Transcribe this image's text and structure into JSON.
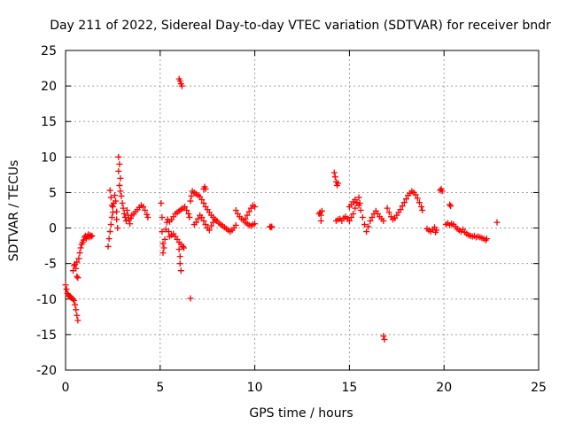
{
  "chart_data": {
    "type": "scatter",
    "title": "Day 211 of 2022, Sidereal Day-to-day VTEC variation (SDTVAR) for receiver bndr",
    "xlabel": "GPS time / hours",
    "ylabel": "SDTVAR / TECUs",
    "xlim": [
      0,
      25
    ],
    "ylim": [
      -20,
      25
    ],
    "xticks": [
      0,
      5,
      10,
      15,
      20,
      25
    ],
    "yticks": [
      -20,
      -15,
      -10,
      -5,
      0,
      5,
      10,
      15,
      20,
      25
    ],
    "grid": true,
    "marker": "+",
    "series": [
      {
        "name": "SDTVAR",
        "color": "#ff0000",
        "points": [
          [
            0.0,
            -8.0
          ],
          [
            0.05,
            -8.6
          ],
          [
            0.1,
            -9.2
          ],
          [
            0.15,
            -9.4
          ],
          [
            0.2,
            -9.6
          ],
          [
            0.25,
            -9.7
          ],
          [
            0.3,
            -9.8
          ],
          [
            0.35,
            -9.9
          ],
          [
            0.4,
            -10.0
          ],
          [
            0.45,
            -10.2
          ],
          [
            0.5,
            -10.8
          ],
          [
            0.55,
            -11.5
          ],
          [
            0.6,
            -12.3
          ],
          [
            0.65,
            -13.0
          ],
          [
            0.4,
            -6.0
          ],
          [
            0.45,
            -5.3
          ],
          [
            0.5,
            -5.1
          ],
          [
            0.55,
            -5.7
          ],
          [
            0.6,
            -6.8
          ],
          [
            0.65,
            -7.0
          ],
          [
            0.6,
            -4.8
          ],
          [
            0.7,
            -4.3
          ],
          [
            0.75,
            -3.5
          ],
          [
            0.8,
            -2.8
          ],
          [
            0.85,
            -2.3
          ],
          [
            0.9,
            -2.0
          ],
          [
            0.95,
            -1.7
          ],
          [
            1.0,
            -1.3
          ],
          [
            1.05,
            -1.1
          ],
          [
            1.1,
            -1.5
          ],
          [
            1.15,
            -1.2
          ],
          [
            1.2,
            -0.9
          ],
          [
            1.25,
            -1.3
          ],
          [
            1.3,
            -1.0
          ],
          [
            1.35,
            -1.2
          ],
          [
            1.4,
            -1.1
          ],
          [
            2.25,
            -2.6
          ],
          [
            2.3,
            -1.5
          ],
          [
            2.35,
            -0.5
          ],
          [
            2.4,
            0.5
          ],
          [
            2.45,
            1.5
          ],
          [
            2.5,
            3.0
          ],
          [
            2.35,
            5.3
          ],
          [
            2.4,
            4.3
          ],
          [
            2.45,
            3.2
          ],
          [
            2.5,
            2.2
          ],
          [
            2.55,
            3.5
          ],
          [
            2.6,
            4.6
          ],
          [
            2.65,
            3.8
          ],
          [
            2.7,
            2.3
          ],
          [
            2.7,
            1.2
          ],
          [
            2.75,
            0.0
          ],
          [
            2.8,
            10.0
          ],
          [
            2.85,
            9.0
          ],
          [
            2.8,
            8.0
          ],
          [
            2.9,
            7.0
          ],
          [
            2.85,
            6.0
          ],
          [
            2.9,
            5.2
          ],
          [
            2.95,
            4.5
          ],
          [
            3.0,
            3.5
          ],
          [
            3.05,
            2.8
          ],
          [
            3.1,
            2.0
          ],
          [
            3.15,
            1.5
          ],
          [
            3.2,
            1.0
          ],
          [
            3.25,
            2.5
          ],
          [
            3.3,
            1.8
          ],
          [
            3.35,
            1.2
          ],
          [
            3.4,
            0.6
          ],
          [
            3.45,
            1.4
          ],
          [
            3.5,
            1.8
          ],
          [
            3.6,
            2.0
          ],
          [
            3.7,
            2.3
          ],
          [
            3.8,
            2.6
          ],
          [
            3.9,
            2.9
          ],
          [
            4.0,
            3.2
          ],
          [
            4.1,
            3.0
          ],
          [
            4.2,
            2.5
          ],
          [
            4.3,
            1.9
          ],
          [
            4.35,
            1.5
          ],
          [
            5.05,
            3.5
          ],
          [
            5.1,
            1.5
          ],
          [
            5.1,
            -0.5
          ],
          [
            5.15,
            -2.2
          ],
          [
            5.15,
            -3.5
          ],
          [
            5.2,
            -2.8
          ],
          [
            5.25,
            -1.6
          ],
          [
            5.3,
            -0.2
          ],
          [
            5.35,
            0.8
          ],
          [
            5.4,
            1.2
          ],
          [
            5.45,
            -0.5
          ],
          [
            5.5,
            -1.2
          ],
          [
            5.6,
            -1.0
          ],
          [
            5.7,
            -0.8
          ],
          [
            5.8,
            -1.2
          ],
          [
            5.9,
            -1.6
          ],
          [
            6.0,
            -2.0
          ],
          [
            6.1,
            -2.3
          ],
          [
            6.2,
            -2.6
          ],
          [
            6.25,
            -2.8
          ],
          [
            5.5,
            0.9
          ],
          [
            5.6,
            1.2
          ],
          [
            5.7,
            1.6
          ],
          [
            5.8,
            2.0
          ],
          [
            5.9,
            2.2
          ],
          [
            6.0,
            2.4
          ],
          [
            6.1,
            2.6
          ],
          [
            6.2,
            2.8
          ],
          [
            6.3,
            3.0
          ],
          [
            6.4,
            2.5
          ],
          [
            6.5,
            2.0
          ],
          [
            6.55,
            1.5
          ],
          [
            6.0,
            -3.0
          ],
          [
            6.05,
            -4.0
          ],
          [
            6.05,
            -5.0
          ],
          [
            6.1,
            -6.0
          ],
          [
            6.0,
            21.0
          ],
          [
            6.05,
            20.7
          ],
          [
            6.1,
            20.3
          ],
          [
            6.15,
            20.0
          ],
          [
            6.6,
            -9.9
          ],
          [
            6.6,
            3.8
          ],
          [
            6.65,
            4.5
          ],
          [
            6.7,
            5.2
          ],
          [
            6.8,
            5.0
          ],
          [
            6.9,
            4.8
          ],
          [
            7.0,
            4.6
          ],
          [
            7.1,
            4.4
          ],
          [
            7.2,
            4.0
          ],
          [
            7.3,
            3.5
          ],
          [
            7.4,
            3.0
          ],
          [
            7.5,
            2.6
          ],
          [
            7.6,
            2.2
          ],
          [
            7.7,
            1.8
          ],
          [
            7.8,
            1.5
          ],
          [
            7.9,
            1.2
          ],
          [
            8.0,
            1.0
          ],
          [
            8.1,
            0.7
          ],
          [
            8.2,
            0.5
          ],
          [
            8.3,
            0.3
          ],
          [
            8.4,
            0.1
          ],
          [
            8.5,
            -0.1
          ],
          [
            8.6,
            -0.3
          ],
          [
            8.7,
            -0.5
          ],
          [
            8.8,
            -0.3
          ],
          [
            8.9,
            0.0
          ],
          [
            9.0,
            0.4
          ],
          [
            6.8,
            0.5
          ],
          [
            6.9,
            0.8
          ],
          [
            7.0,
            1.3
          ],
          [
            7.1,
            1.8
          ],
          [
            7.2,
            1.5
          ],
          [
            7.3,
            1.0
          ],
          [
            7.4,
            0.5
          ],
          [
            7.5,
            0.0
          ],
          [
            7.6,
            -0.3
          ],
          [
            7.7,
            0.3
          ],
          [
            7.8,
            0.8
          ],
          [
            7.9,
            1.2
          ],
          [
            8.0,
            1.0
          ],
          [
            7.3,
            5.5
          ],
          [
            7.35,
            5.8
          ],
          [
            7.4,
            5.5
          ],
          [
            9.0,
            2.5
          ],
          [
            9.1,
            2.0
          ],
          [
            9.2,
            1.6
          ],
          [
            9.3,
            1.3
          ],
          [
            9.4,
            1.1
          ],
          [
            9.5,
            1.3
          ],
          [
            9.6,
            1.8
          ],
          [
            9.7,
            2.3
          ],
          [
            9.8,
            2.8
          ],
          [
            9.9,
            3.2
          ],
          [
            10.0,
            3.0
          ],
          [
            9.5,
            0.8
          ],
          [
            9.6,
            0.6
          ],
          [
            9.7,
            0.4
          ],
          [
            9.8,
            0.3
          ],
          [
            9.9,
            0.5
          ],
          [
            10.0,
            0.6
          ],
          [
            10.8,
            0.2
          ],
          [
            10.85,
            0.1
          ],
          [
            10.9,
            0.2
          ],
          [
            13.4,
            2.0
          ],
          [
            13.45,
            2.2
          ],
          [
            13.5,
            1.8
          ],
          [
            13.5,
            1.0
          ],
          [
            13.55,
            2.4
          ],
          [
            14.2,
            7.8
          ],
          [
            14.25,
            7.2
          ],
          [
            14.3,
            6.5
          ],
          [
            14.35,
            6.0
          ],
          [
            14.4,
            6.3
          ],
          [
            14.3,
            1.0
          ],
          [
            14.4,
            1.2
          ],
          [
            14.5,
            1.3
          ],
          [
            14.6,
            1.0
          ],
          [
            14.7,
            1.4
          ],
          [
            14.8,
            1.6
          ],
          [
            14.9,
            1.3
          ],
          [
            15.0,
            1.0
          ],
          [
            15.1,
            1.5
          ],
          [
            15.2,
            2.0
          ],
          [
            15.3,
            2.8
          ],
          [
            15.4,
            3.5
          ],
          [
            15.5,
            4.3
          ],
          [
            15.55,
            3.5
          ],
          [
            15.6,
            2.5
          ],
          [
            15.7,
            1.5
          ],
          [
            15.8,
            0.5
          ],
          [
            15.9,
            -0.5
          ],
          [
            16.0,
            0.2
          ],
          [
            16.1,
            1.0
          ],
          [
            16.2,
            1.5
          ],
          [
            16.3,
            2.0
          ],
          [
            16.4,
            2.4
          ],
          [
            16.5,
            2.0
          ],
          [
            16.6,
            1.6
          ],
          [
            16.7,
            1.3
          ],
          [
            16.8,
            1.0
          ],
          [
            15.0,
            3.0
          ],
          [
            15.1,
            3.3
          ],
          [
            15.2,
            3.7
          ],
          [
            15.3,
            4.0
          ],
          [
            15.4,
            3.6
          ],
          [
            15.5,
            3.2
          ],
          [
            17.0,
            2.8
          ],
          [
            17.1,
            2.2
          ],
          [
            17.2,
            1.6
          ],
          [
            17.3,
            1.2
          ],
          [
            17.4,
            1.4
          ],
          [
            17.5,
            1.8
          ],
          [
            17.6,
            2.2
          ],
          [
            17.7,
            2.6
          ],
          [
            17.8,
            3.1
          ],
          [
            17.9,
            3.6
          ],
          [
            18.0,
            4.1
          ],
          [
            18.1,
            4.6
          ],
          [
            18.2,
            4.9
          ],
          [
            18.3,
            5.2
          ],
          [
            18.4,
            5.0
          ],
          [
            18.5,
            4.7
          ],
          [
            18.6,
            4.2
          ],
          [
            18.7,
            3.6
          ],
          [
            18.8,
            3.0
          ],
          [
            18.85,
            2.5
          ],
          [
            16.8,
            -15.2
          ],
          [
            16.85,
            -15.7
          ],
          [
            19.1,
            -0.1
          ],
          [
            19.2,
            -0.3
          ],
          [
            19.3,
            -0.5
          ],
          [
            19.4,
            -0.2
          ],
          [
            19.5,
            0.1
          ],
          [
            19.55,
            -0.6
          ],
          [
            19.6,
            -0.3
          ],
          [
            19.8,
            5.3
          ],
          [
            19.85,
            5.5
          ],
          [
            19.9,
            5.2
          ],
          [
            20.1,
            0.5
          ],
          [
            20.2,
            0.7
          ],
          [
            20.3,
            0.4
          ],
          [
            20.4,
            0.6
          ],
          [
            20.5,
            0.5
          ],
          [
            20.6,
            0.2
          ],
          [
            20.7,
            -0.1
          ],
          [
            20.8,
            -0.3
          ],
          [
            20.9,
            -0.5
          ],
          [
            21.0,
            -0.2
          ],
          [
            21.1,
            -0.6
          ],
          [
            21.2,
            -0.8
          ],
          [
            21.3,
            -1.0
          ],
          [
            21.4,
            -1.1
          ],
          [
            21.5,
            -1.2
          ],
          [
            21.6,
            -1.1
          ],
          [
            21.7,
            -1.3
          ],
          [
            21.8,
            -1.2
          ],
          [
            21.9,
            -1.3
          ],
          [
            22.0,
            -1.4
          ],
          [
            22.1,
            -1.5
          ],
          [
            22.2,
            -1.7
          ],
          [
            22.25,
            -1.5
          ],
          [
            20.3,
            3.3
          ],
          [
            20.35,
            3.1
          ],
          [
            22.8,
            0.8
          ]
        ]
      }
    ]
  }
}
